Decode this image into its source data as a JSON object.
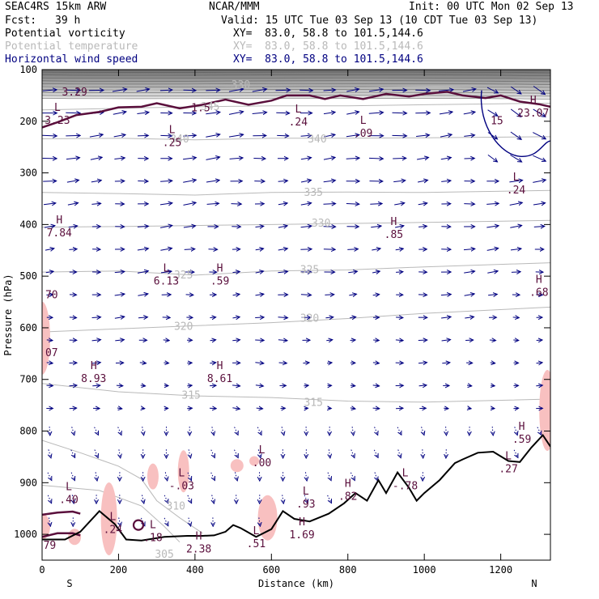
{
  "header": {
    "model": "SEAC4RS 15km ARW",
    "org": "NCAR/MMM",
    "init": "Init: 00 UTC Mon 02 Sep 13",
    "fcst_label": "Fcst:",
    "fcst_value": "39 h",
    "valid": "Valid: 15 UTC Tue 03 Sep 13 (10 CDT Tue 03 Sep 13)",
    "fields": [
      {
        "name": "Potential vorticity",
        "xy": "XY=  83.0, 58.8 to 101.5,144.6",
        "color": "#000000"
      },
      {
        "name": "Potential temperature",
        "xy": "XY=  83.0, 58.8 to 101.5,144.6",
        "color": "#b9b9b9"
      },
      {
        "name": "Horizontal wind speed",
        "xy": "XY=  83.0, 58.8 to 101.5,144.6",
        "color": "#000080"
      }
    ]
  },
  "chart_data": {
    "type": "cross-section",
    "ylabel": "Pressure (hPa)",
    "xlabel": "Distance (km)",
    "x_ticks": [
      0,
      200,
      400,
      600,
      800,
      1000,
      1200
    ],
    "y_ticks": [
      100,
      200,
      300,
      400,
      500,
      600,
      700,
      800,
      900,
      1000
    ],
    "xlim": [
      0,
      1330
    ],
    "ylim": [
      1050,
      100
    ],
    "endpoints": {
      "left": "S",
      "right": "N"
    },
    "colors": {
      "theta": "#b9b9b9",
      "wind": "#000080",
      "pv": "#5a0f3c",
      "terrain": "#000000",
      "pv_neg_fill": "#f8c0c0",
      "strat_fill": "#8c8c8c"
    },
    "theta_labels": [
      {
        "text": "330",
        "x": 520,
        "p": 130
      },
      {
        "text": "345",
        "x": 440,
        "p": 172
      },
      {
        "text": "340",
        "x": 360,
        "p": 235
      },
      {
        "text": "340",
        "x": 720,
        "p": 235
      },
      {
        "text": "335",
        "x": 710,
        "p": 338
      },
      {
        "text": "330",
        "x": 730,
        "p": 398
      },
      {
        "text": "325",
        "x": 370,
        "p": 498
      },
      {
        "text": "325",
        "x": 700,
        "p": 488
      },
      {
        "text": "320",
        "x": 370,
        "p": 598
      },
      {
        "text": "320",
        "x": 700,
        "p": 582
      },
      {
        "text": "315",
        "x": 390,
        "p": 731
      },
      {
        "text": "315",
        "x": 710,
        "p": 745
      },
      {
        "text": "310",
        "x": 350,
        "p": 946
      },
      {
        "text": "305",
        "x": 320,
        "p": 1039
      }
    ],
    "extrema": [
      {
        "type": "",
        "value": "3.29",
        "x": 85,
        "p": 142
      },
      {
        "type": "L",
        "value": "3.23",
        "x": 40,
        "p": 197
      },
      {
        "type": "",
        "value": "1.5",
        "x": 415,
        "p": 173
      },
      {
        "type": "L",
        "value": ".25",
        "x": 340,
        "p": 240
      },
      {
        "type": "L",
        "value": ".24",
        "x": 670,
        "p": 200
      },
      {
        "type": "L",
        "value": ".09",
        "x": 840,
        "p": 222
      },
      {
        "type": "H",
        "value": "23.07",
        "x": 1285,
        "p": 183
      },
      {
        "type": "",
        "value": "15",
        "x": 1190,
        "p": 198
      },
      {
        "type": "L",
        "value": ".24",
        "x": 1240,
        "p": 332
      },
      {
        "type": "H",
        "value": "7.84",
        "x": 45,
        "p": 415
      },
      {
        "type": "H",
        "value": ".85",
        "x": 920,
        "p": 418
      },
      {
        "type": "L",
        "value": "6.13",
        "x": 325,
        "p": 508
      },
      {
        "type": "H",
        "value": ".59",
        "x": 465,
        "p": 508
      },
      {
        "type": "",
        "value": "70",
        "x": 25,
        "p": 535
      },
      {
        "type": "H",
        "value": ".68",
        "x": 1300,
        "p": 530
      },
      {
        "type": "",
        "value": "07",
        "x": 25,
        "p": 647
      },
      {
        "type": "H",
        "value": "8.93",
        "x": 135,
        "p": 697
      },
      {
        "type": "H",
        "value": "8.61",
        "x": 465,
        "p": 697
      },
      {
        "type": "H",
        "value": ".59",
        "x": 1255,
        "p": 815
      },
      {
        "type": "L",
        "value": ".00",
        "x": 575,
        "p": 860
      },
      {
        "type": "L",
        "value": "-.03",
        "x": 365,
        "p": 905
      },
      {
        "type": "L",
        "value": ".27",
        "x": 1220,
        "p": 872
      },
      {
        "type": "L",
        "value": "-.78",
        "x": 950,
        "p": 905
      },
      {
        "type": "H",
        "value": ".82",
        "x": 800,
        "p": 925
      },
      {
        "type": "L",
        "value": ".93",
        "x": 690,
        "p": 940
      },
      {
        "type": "L",
        "value": ".40",
        "x": 70,
        "p": 932
      },
      {
        "type": "L",
        "value": ".24",
        "x": 185,
        "p": 990
      },
      {
        "type": "L",
        "value": ".18",
        "x": 290,
        "p": 1005
      },
      {
        "type": "L",
        "value": ".51",
        "x": 560,
        "p": 1017
      },
      {
        "type": "H",
        "value": "1.69",
        "x": 680,
        "p": 1000
      },
      {
        "type": "H",
        "value": "2.38",
        "x": 410,
        "p": 1027
      },
      {
        "type": "",
        "value": "79",
        "x": 20,
        "p": 1020
      }
    ],
    "terrain_p": [
      [
        0,
        1010
      ],
      [
        60,
        1010
      ],
      [
        100,
        995
      ],
      [
        150,
        955
      ],
      [
        190,
        980
      ],
      [
        220,
        1010
      ],
      [
        260,
        1012
      ],
      [
        320,
        1005
      ],
      [
        380,
        1003
      ],
      [
        420,
        1003
      ],
      [
        450,
        1002
      ],
      [
        480,
        995
      ],
      [
        500,
        982
      ],
      [
        520,
        988
      ],
      [
        560,
        1005
      ],
      [
        600,
        990
      ],
      [
        630,
        955
      ],
      [
        660,
        970
      ],
      [
        700,
        975
      ],
      [
        750,
        960
      ],
      [
        790,
        940
      ],
      [
        820,
        920
      ],
      [
        850,
        935
      ],
      [
        880,
        895
      ],
      [
        900,
        920
      ],
      [
        930,
        880
      ],
      [
        960,
        910
      ],
      [
        980,
        935
      ],
      [
        1000,
        920
      ],
      [
        1040,
        895
      ],
      [
        1080,
        862
      ],
      [
        1100,
        855
      ],
      [
        1140,
        842
      ],
      [
        1180,
        840
      ],
      [
        1220,
        858
      ],
      [
        1250,
        860
      ],
      [
        1280,
        832
      ],
      [
        1310,
        808
      ],
      [
        1330,
        830
      ]
    ],
    "tropopause_p": [
      [
        0,
        212
      ],
      [
        40,
        202
      ],
      [
        90,
        188
      ],
      [
        150,
        182
      ],
      [
        200,
        173
      ],
      [
        260,
        172
      ],
      [
        300,
        165
      ],
      [
        360,
        175
      ],
      [
        420,
        168
      ],
      [
        480,
        158
      ],
      [
        540,
        168
      ],
      [
        600,
        160
      ],
      [
        640,
        150
      ],
      [
        700,
        150
      ],
      [
        740,
        157
      ],
      [
        780,
        150
      ],
      [
        840,
        157
      ],
      [
        900,
        147
      ],
      [
        960,
        152
      ],
      [
        1000,
        147
      ],
      [
        1060,
        143
      ],
      [
        1100,
        150
      ],
      [
        1160,
        155
      ],
      [
        1200,
        150
      ],
      [
        1250,
        162
      ],
      [
        1300,
        167
      ],
      [
        1330,
        172
      ]
    ]
  }
}
